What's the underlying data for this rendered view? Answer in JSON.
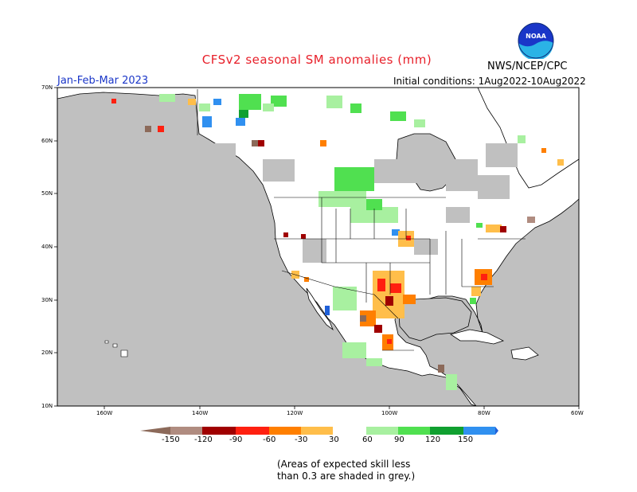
{
  "title": "CFSv2 seasonal SM anomalies (mm)",
  "agency": "NWS/NCEP/CPC",
  "season": "Jan-Feb-Mar 2023",
  "initial_conditions": "Initial conditions: 1Aug2022-10Aug2022",
  "logo_text": "NOAA",
  "note_line1": "(Areas of expected skill less",
  "note_line2": "than 0.3 are shaded in grey.)",
  "lat_labels": [
    "70N",
    "60N",
    "50N",
    "40N",
    "30N",
    "20N",
    "10N"
  ],
  "lon_labels": [
    "160W",
    "140W",
    "120W",
    "100W",
    "80W",
    "60W"
  ],
  "colorbar": {
    "labels": [
      "-150",
      "-120",
      "-90",
      "-60",
      "-30",
      "30",
      "60",
      "90",
      "120",
      "150"
    ],
    "colors": [
      "#8c6a5a",
      "#b08c80",
      "#a00000",
      "#ff2010",
      "#ff7f00",
      "#ffbe4a",
      "#ffffff",
      "#a8f0a0",
      "#50e050",
      "#10a030",
      "#3090f0",
      "#2060d8"
    ]
  },
  "colors": {
    "land": "#ffffff",
    "ocean": "#c0c0c0",
    "low_skill": "#c0c0c0",
    "title": "#e8202a",
    "season": "#1a36c8"
  }
}
